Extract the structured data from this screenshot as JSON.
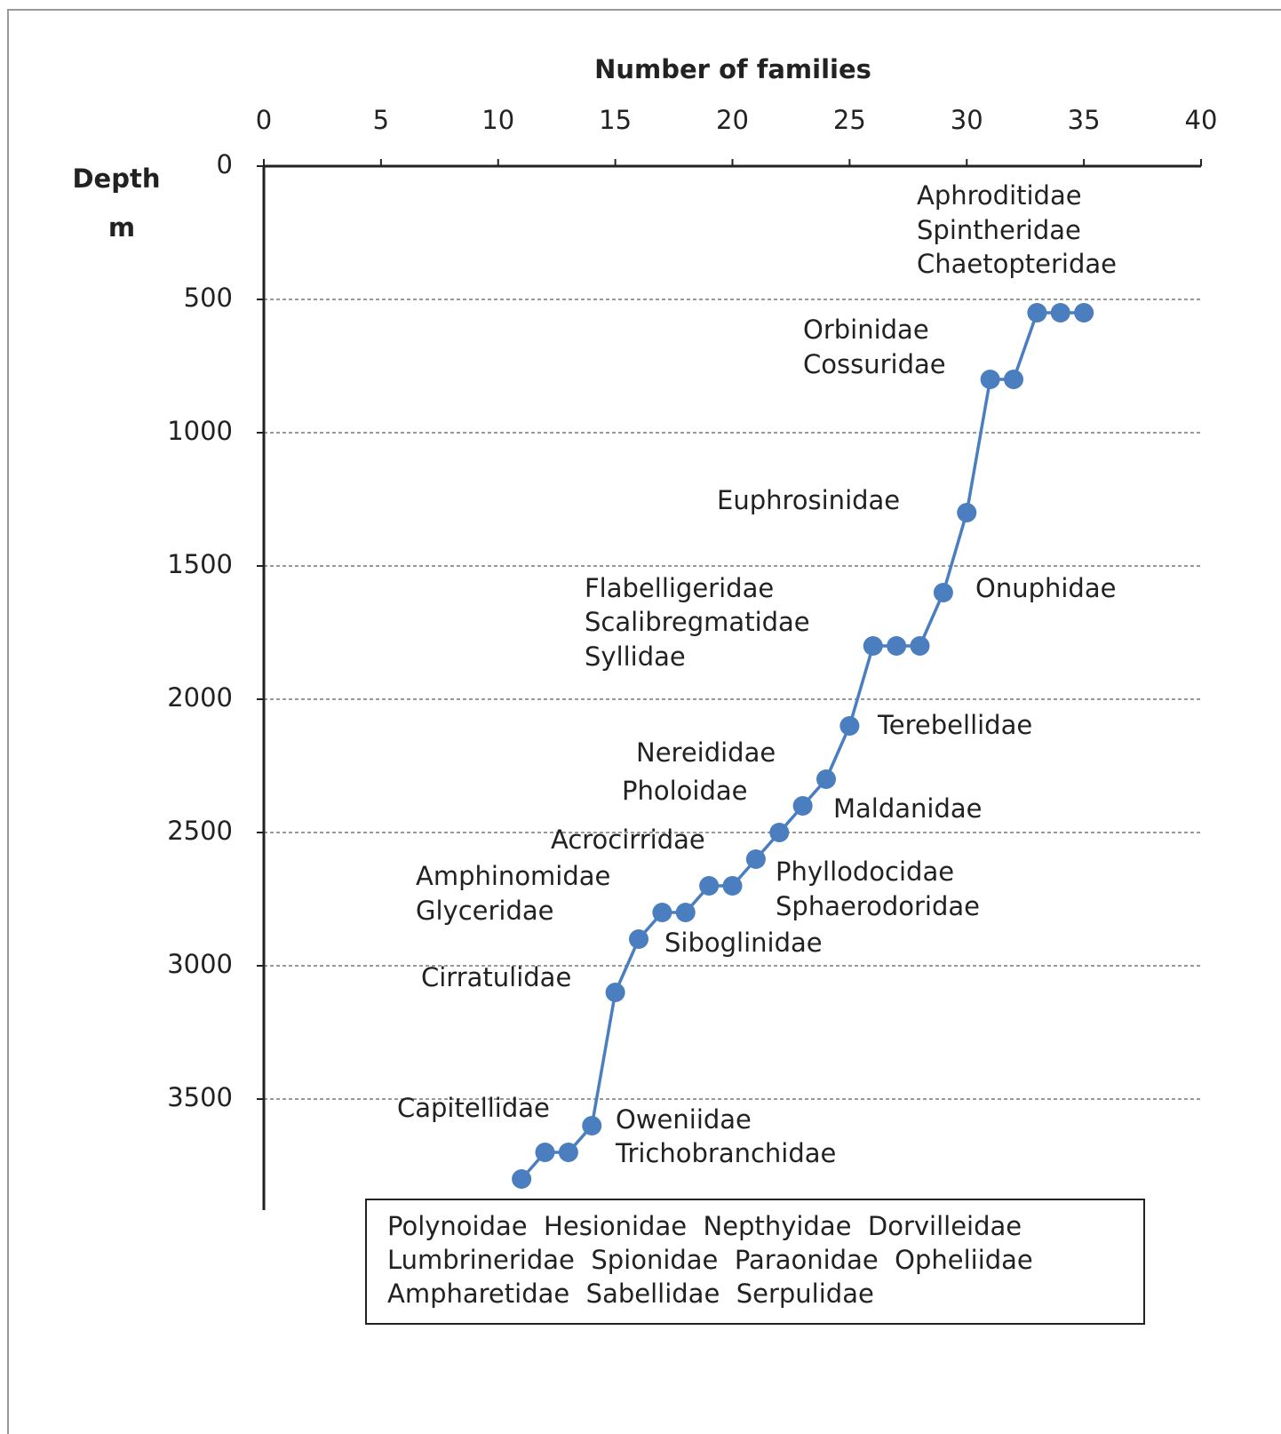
{
  "chart_data": {
    "type": "line",
    "title": "Number of families",
    "ylabel_lines": [
      "Depth",
      "m"
    ],
    "x": [
      11,
      12,
      13,
      14,
      15,
      16,
      17,
      18,
      19,
      20,
      21,
      22,
      23,
      24,
      25,
      26,
      27,
      28,
      29,
      30,
      31,
      32,
      33,
      34,
      35
    ],
    "values": [
      3800,
      3700,
      3700,
      3600,
      3100,
      2900,
      2800,
      2800,
      2700,
      2700,
      2600,
      2500,
      2400,
      2300,
      2100,
      1800,
      1800,
      1800,
      1600,
      1300,
      800,
      800,
      550,
      550,
      550
    ],
    "color": "#4a7ebf",
    "xlim": [
      0,
      40
    ],
    "xticks": [
      0,
      5,
      10,
      15,
      20,
      25,
      30,
      35,
      40
    ],
    "ylim": [
      0,
      3900
    ],
    "yticks": [
      0,
      500,
      1000,
      1500,
      2000,
      2500,
      3000,
      3500
    ],
    "y_inverted": true,
    "grid": true,
    "annotations": [
      "Aphroditidae",
      "Spintheridae",
      "Chaetopteridae",
      "Orbinidae",
      "Cossuridae",
      "Euphrosinidae",
      "Onuphidae",
      "Flabelligeridae",
      "Scalibregmatidae",
      "Syllidae",
      "Terebellidae",
      "Nereididae",
      "Pholoidae",
      "Maldanidae",
      "Acrocirridae",
      "Amphinomidae",
      "Glyceridae",
      "Phyllodocidae",
      "Sphaerodoridae",
      "Siboglinidae",
      "Cirratulidae",
      "Capitellidae",
      "Oweniidae",
      "Trichobranchidae"
    ],
    "box_text": [
      "Polynoidae  Hesionidae  Nepthyidae  Dorvilleidae",
      "Lumbrineridae  Spionidae  Paraonidae  Opheliidae",
      "Ampharetidae  Sabellidae  Serpulidae"
    ]
  }
}
